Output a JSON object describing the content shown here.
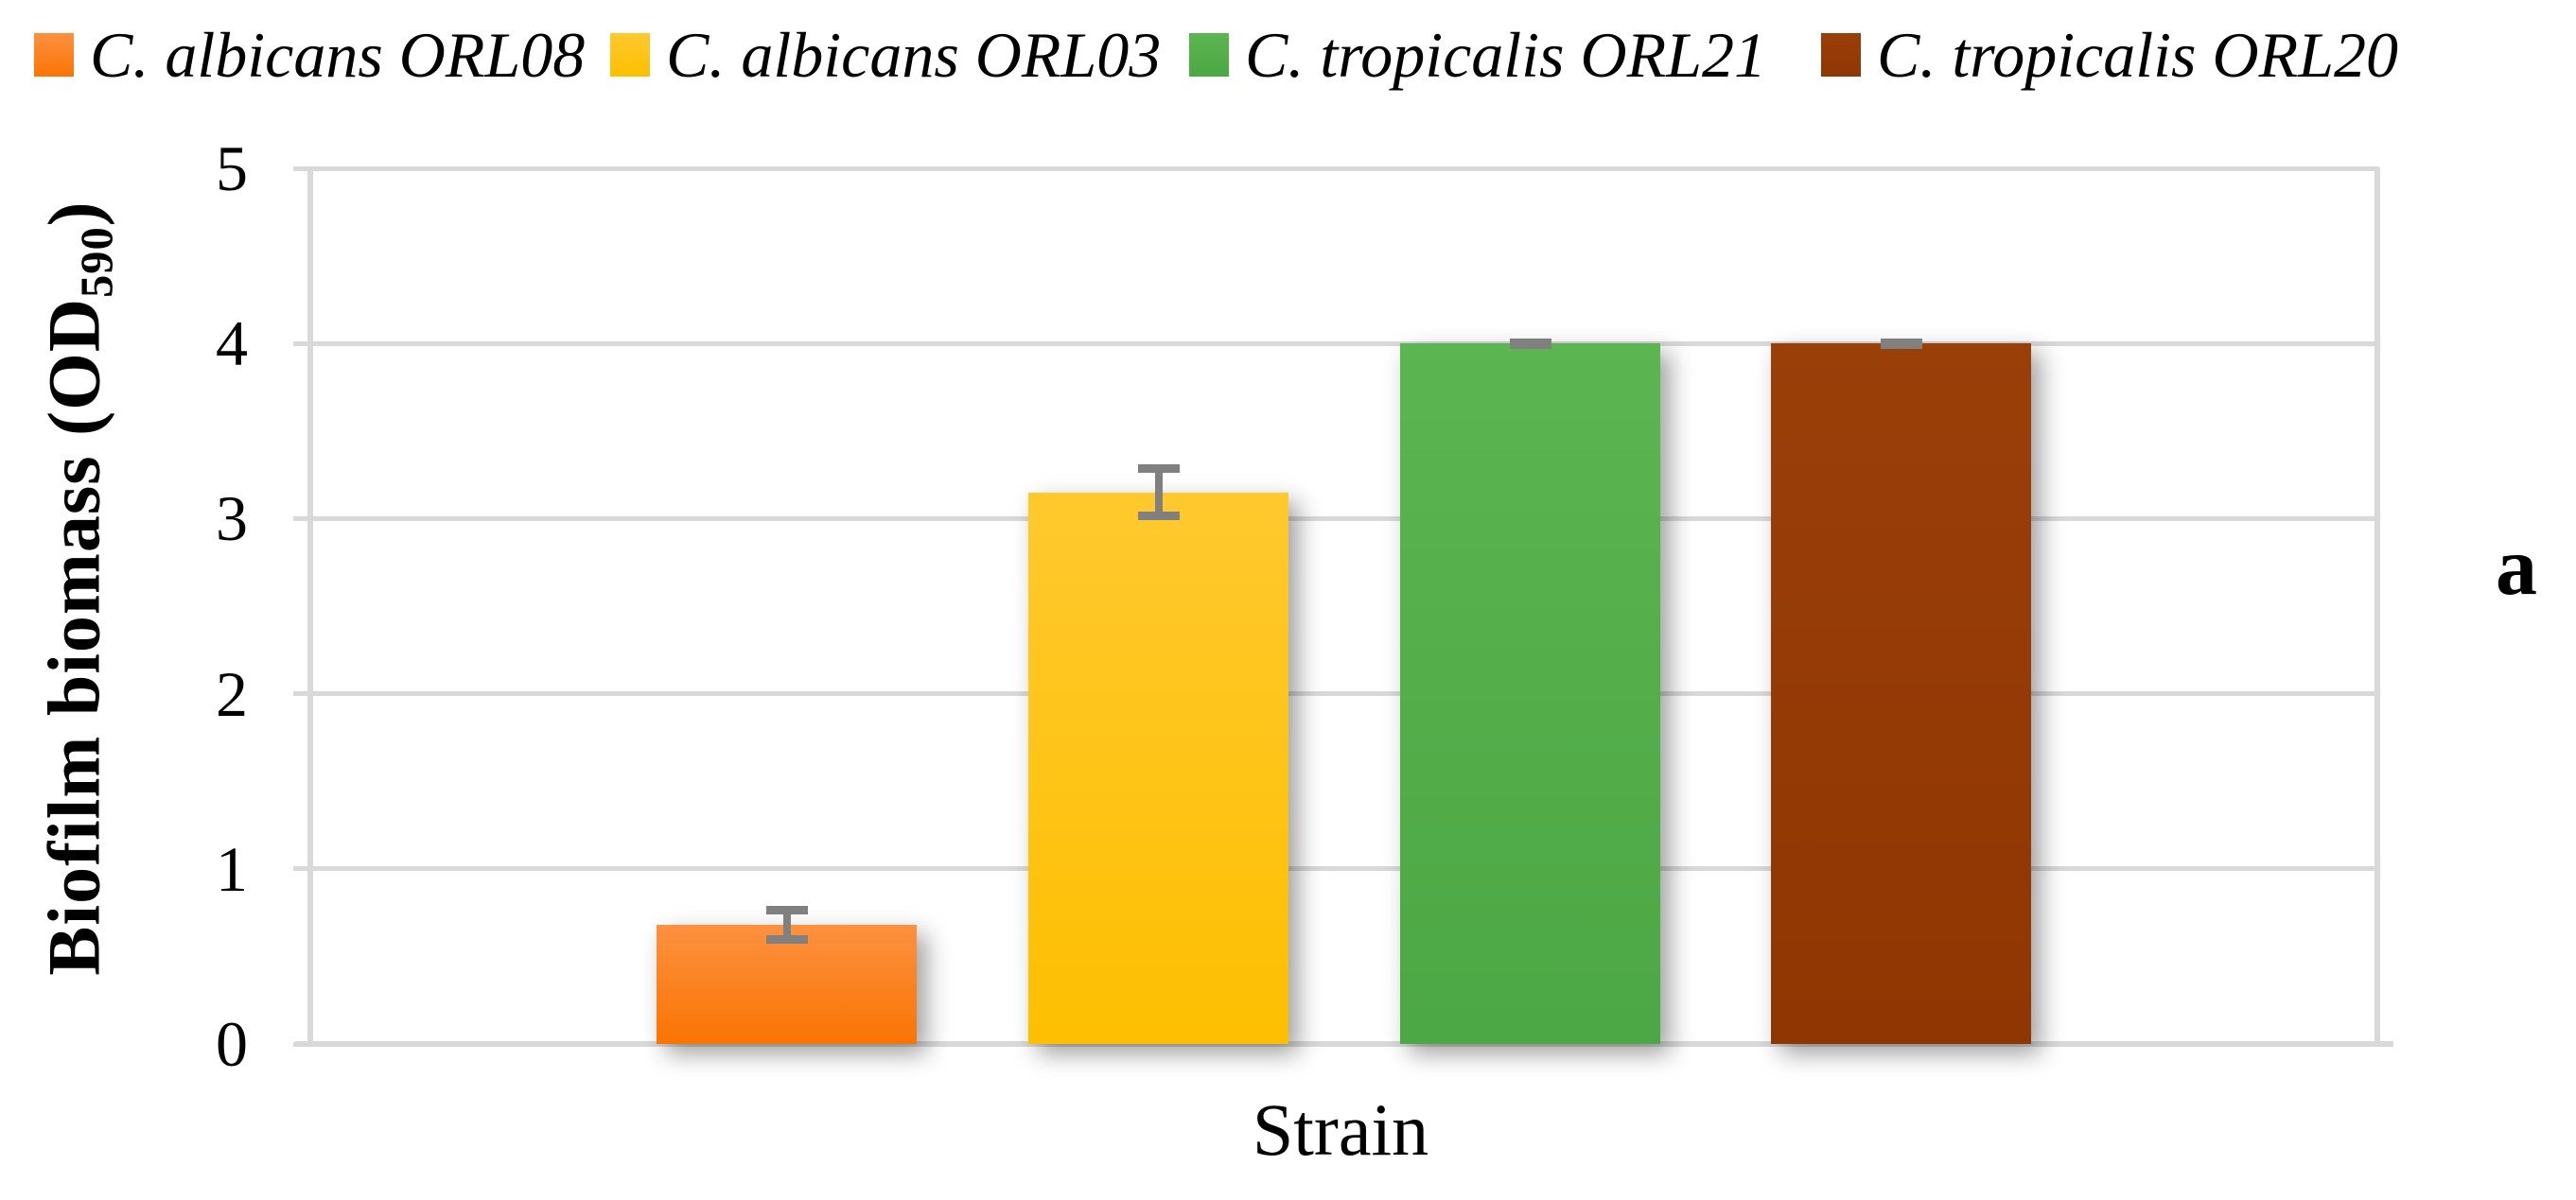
{
  "figure": {
    "panel_label": "a"
  },
  "chart_data": {
    "type": "bar",
    "title": "",
    "xlabel": "Strain",
    "ylabel": "Biofilm biomass (OD590)",
    "ylabel_parts": {
      "prefix": "Biofilm biomass (OD",
      "subscript": "590",
      "suffix": ")"
    },
    "ylim": [
      0,
      5
    ],
    "yticks": [
      0,
      1,
      2,
      3,
      4,
      5
    ],
    "grid": true,
    "legend_position": "top",
    "categories": [
      "Strain"
    ],
    "series": [
      {
        "name": "C. albicans ORL08",
        "value": 0.68,
        "error": 0.11,
        "color_top": "#FC9140",
        "color_bottom": "#FA7403"
      },
      {
        "name": "C. albicans ORL03",
        "value": 3.15,
        "error": 0.16,
        "color_top": "#FFC92E",
        "color_bottom": "#FEBF01"
      },
      {
        "name": "C. tropicalis ORL21",
        "value": 4.0,
        "error": 0.02,
        "color_top": "#5BB551",
        "color_bottom": "#4CA844"
      },
      {
        "name": "C. tropicalis ORL20",
        "value": 4.0,
        "error": 0.02,
        "color_top": "#9B3F09",
        "color_bottom": "#8F3602"
      }
    ],
    "colors": {
      "error_bar": "#808080",
      "gridline": "#D9D9D9",
      "axis": "#D9D9D9",
      "text": "#000000"
    }
  }
}
